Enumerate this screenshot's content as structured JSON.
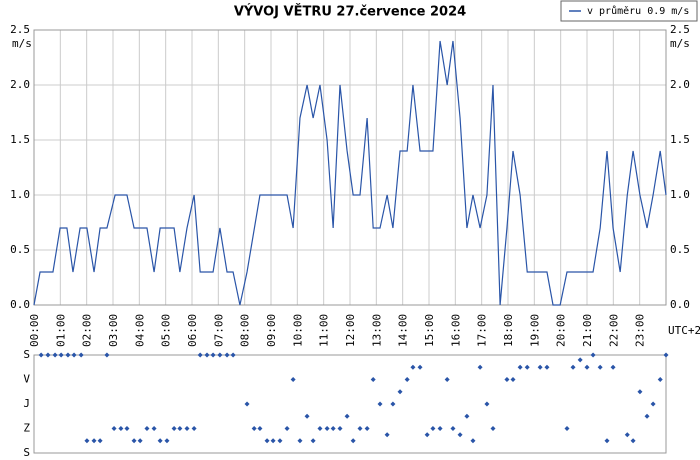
{
  "chart_data": [
    {
      "type": "line",
      "title": "VÝVOJ VĚTRU  27.července 2024",
      "ylabel": "m/s",
      "xlabel": "UTC+2",
      "grid": true,
      "legend": "top-right",
      "xlim": [
        0,
        24
      ],
      "ylim": [
        0,
        2.5
      ],
      "yticks": [
        {
          "value": 0,
          "label": "0.0"
        },
        0.5,
        {
          "value": 1,
          "label": "1.0"
        },
        1.5,
        {
          "value": 2,
          "label": "2.0"
        },
        2.5
      ],
      "xticks": [
        {
          "value": 0,
          "label": "00:00"
        },
        {
          "value": 1,
          "label": "01:00"
        },
        {
          "value": 2,
          "label": "02:00"
        },
        {
          "value": 3,
          "label": "03:00"
        },
        {
          "value": 4,
          "label": "04:00"
        },
        {
          "value": 5,
          "label": "05:00"
        },
        {
          "value": 6,
          "label": "06:00"
        },
        {
          "value": 7,
          "label": "07:00"
        },
        {
          "value": 8,
          "label": "08:00"
        },
        {
          "value": 9,
          "label": "09:00"
        },
        {
          "value": 10,
          "label": "10:00"
        },
        {
          "value": 11,
          "label": "11:00"
        },
        {
          "value": 12,
          "label": "12:00"
        },
        {
          "value": 13,
          "label": "13:00"
        },
        {
          "value": 14,
          "label": "14:00"
        },
        {
          "value": 15,
          "label": "15:00"
        },
        {
          "value": 16,
          "label": "16:00"
        },
        {
          "value": 17,
          "label": "17:00"
        },
        {
          "value": 18,
          "label": "18:00"
        },
        {
          "value": 19,
          "label": "19:00"
        },
        {
          "value": 20,
          "label": "20:00"
        },
        {
          "value": 21,
          "label": "21:00"
        },
        {
          "value": 22,
          "label": "22:00"
        },
        {
          "value": 23,
          "label": "23:00"
        }
      ],
      "x": [
        0,
        0.23,
        0.72,
        0.99,
        1.25,
        1.48,
        1.75,
        2.01,
        2.28,
        2.51,
        2.77,
        3.08,
        3.53,
        3.8,
        4.29,
        4.56,
        4.79,
        5.32,
        5.54,
        5.81,
        6.08,
        6.31,
        6.8,
        7.06,
        7.33,
        7.56,
        7.82,
        8.09,
        8.58,
        9.61,
        9.84,
        10.1,
        10.37,
        10.6,
        10.86,
        11.13,
        11.36,
        11.62,
        11.89,
        12.12,
        12.38,
        12.65,
        12.88,
        13.14,
        13.41,
        13.63,
        13.9,
        14.17,
        14.39,
        14.66,
        15.15,
        15.42,
        15.69,
        15.91,
        16.18,
        16.44,
        16.67,
        16.94,
        17.2,
        17.43,
        17.7,
        17.96,
        18.19,
        18.46,
        18.73,
        19.48,
        19.71,
        19.98,
        20.24,
        21.23,
        21.5,
        21.76,
        21.99,
        22.26,
        22.53,
        22.75,
        23.01,
        23.28,
        23.51,
        23.78,
        24
      ],
      "series": [
        {
          "name": "v průměru 0.9 m/s",
          "color": "#2a55a8",
          "values": [
            0,
            0.3,
            0.3,
            0.7,
            0.7,
            0.3,
            0.7,
            0.7,
            0.3,
            0.7,
            0.7,
            1,
            1,
            0.7,
            0.7,
            0.3,
            0.7,
            0.7,
            0.3,
            0.7,
            1,
            0.3,
            0.3,
            0.7,
            0.3,
            0.3,
            0,
            0.3,
            1,
            1,
            0.7,
            1.7,
            2,
            1.7,
            2,
            1.5,
            0.7,
            2,
            1.4,
            1,
            1,
            1.7,
            0.7,
            0.7,
            1,
            0.7,
            1.4,
            1.4,
            2,
            1.4,
            1.4,
            2.4,
            2,
            2.4,
            1.7,
            0.7,
            1,
            0.7,
            1,
            2,
            0,
            0.7,
            1.4,
            1,
            0.3,
            0.3,
            0,
            0,
            0.3,
            0.3,
            0.7,
            1.4,
            0.7,
            0.3,
            1,
            1.4,
            1,
            0.7,
            1,
            1.4,
            1
          ]
        }
      ]
    },
    {
      "type": "scatter",
      "xlim": [
        0,
        24
      ],
      "ylim": [
        360,
        0
      ],
      "yticks": [
        {
          "value": 0,
          "label": "S"
        },
        {
          "value": 90,
          "label": "V"
        },
        {
          "value": 180,
          "label": "J"
        },
        {
          "value": 270,
          "label": "Z"
        },
        {
          "value": 360,
          "label": "S"
        }
      ],
      "x": [
        0.27,
        0.53,
        0.8,
        1.03,
        1.29,
        1.52,
        1.79,
        2.01,
        2.28,
        2.51,
        2.77,
        3.04,
        3.3,
        3.53,
        3.8,
        4.03,
        4.29,
        4.56,
        4.79,
        5.05,
        5.32,
        5.54,
        5.81,
        6.08,
        6.31,
        6.57,
        6.8,
        7.06,
        7.33,
        7.56,
        8.09,
        8.36,
        8.58,
        8.85,
        9.08,
        9.34,
        9.61,
        9.84,
        10.1,
        10.37,
        10.6,
        10.86,
        11.13,
        11.36,
        11.62,
        11.89,
        12.12,
        12.38,
        12.65,
        12.88,
        13.14,
        13.41,
        13.63,
        13.9,
        14.17,
        14.39,
        14.66,
        14.93,
        15.15,
        15.42,
        15.69,
        15.91,
        16.18,
        16.44,
        16.67,
        16.94,
        17.2,
        17.43,
        17.96,
        18.19,
        18.46,
        18.73,
        19.22,
        19.48,
        20.24,
        20.47,
        20.74,
        21,
        21.23,
        21.5,
        21.76,
        21.99,
        22.53,
        22.75,
        23.01,
        23.28,
        23.51,
        23.78,
        24
      ],
      "series": [
        {
          "color": "#2a55a8",
          "values": [
            0,
            0,
            0,
            0,
            0,
            0,
            0,
            315,
            315,
            315,
            0,
            270,
            270,
            270,
            315,
            315,
            270,
            270,
            315,
            315,
            270,
            270,
            270,
            270,
            0,
            0,
            0,
            0,
            0,
            0,
            180,
            270,
            270,
            315,
            315,
            315,
            270,
            90,
            315,
            225,
            315,
            270,
            270,
            270,
            270,
            225,
            315,
            270,
            270,
            90,
            180,
            293,
            180,
            135,
            90,
            45,
            45,
            293,
            270,
            270,
            90,
            270,
            293,
            225,
            315,
            45,
            180,
            270,
            90,
            90,
            45,
            45,
            45,
            45,
            270,
            45,
            18,
            45,
            0,
            45,
            315,
            45,
            293,
            315,
            135,
            225,
            180,
            90,
            0
          ]
        }
      ]
    }
  ]
}
